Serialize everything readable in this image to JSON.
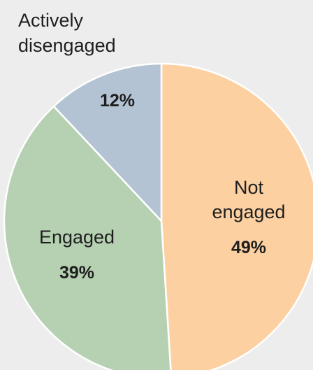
{
  "chart_data": {
    "type": "pie",
    "title": "",
    "slices": [
      {
        "label_lines": [
          "Not",
          "engaged"
        ],
        "value": 49,
        "value_label": "49%",
        "color": "#fdd0a2"
      },
      {
        "label_lines": [
          "Engaged"
        ],
        "value": 39,
        "value_label": "39%",
        "color": "#b5d1b2"
      },
      {
        "label_lines": [
          "Actively",
          "disengaged"
        ],
        "value": 12,
        "value_label": "12%",
        "color": "#b3c3d3"
      }
    ],
    "start_angle": "12 o'clock",
    "direction": "clockwise",
    "legend": "none"
  }
}
